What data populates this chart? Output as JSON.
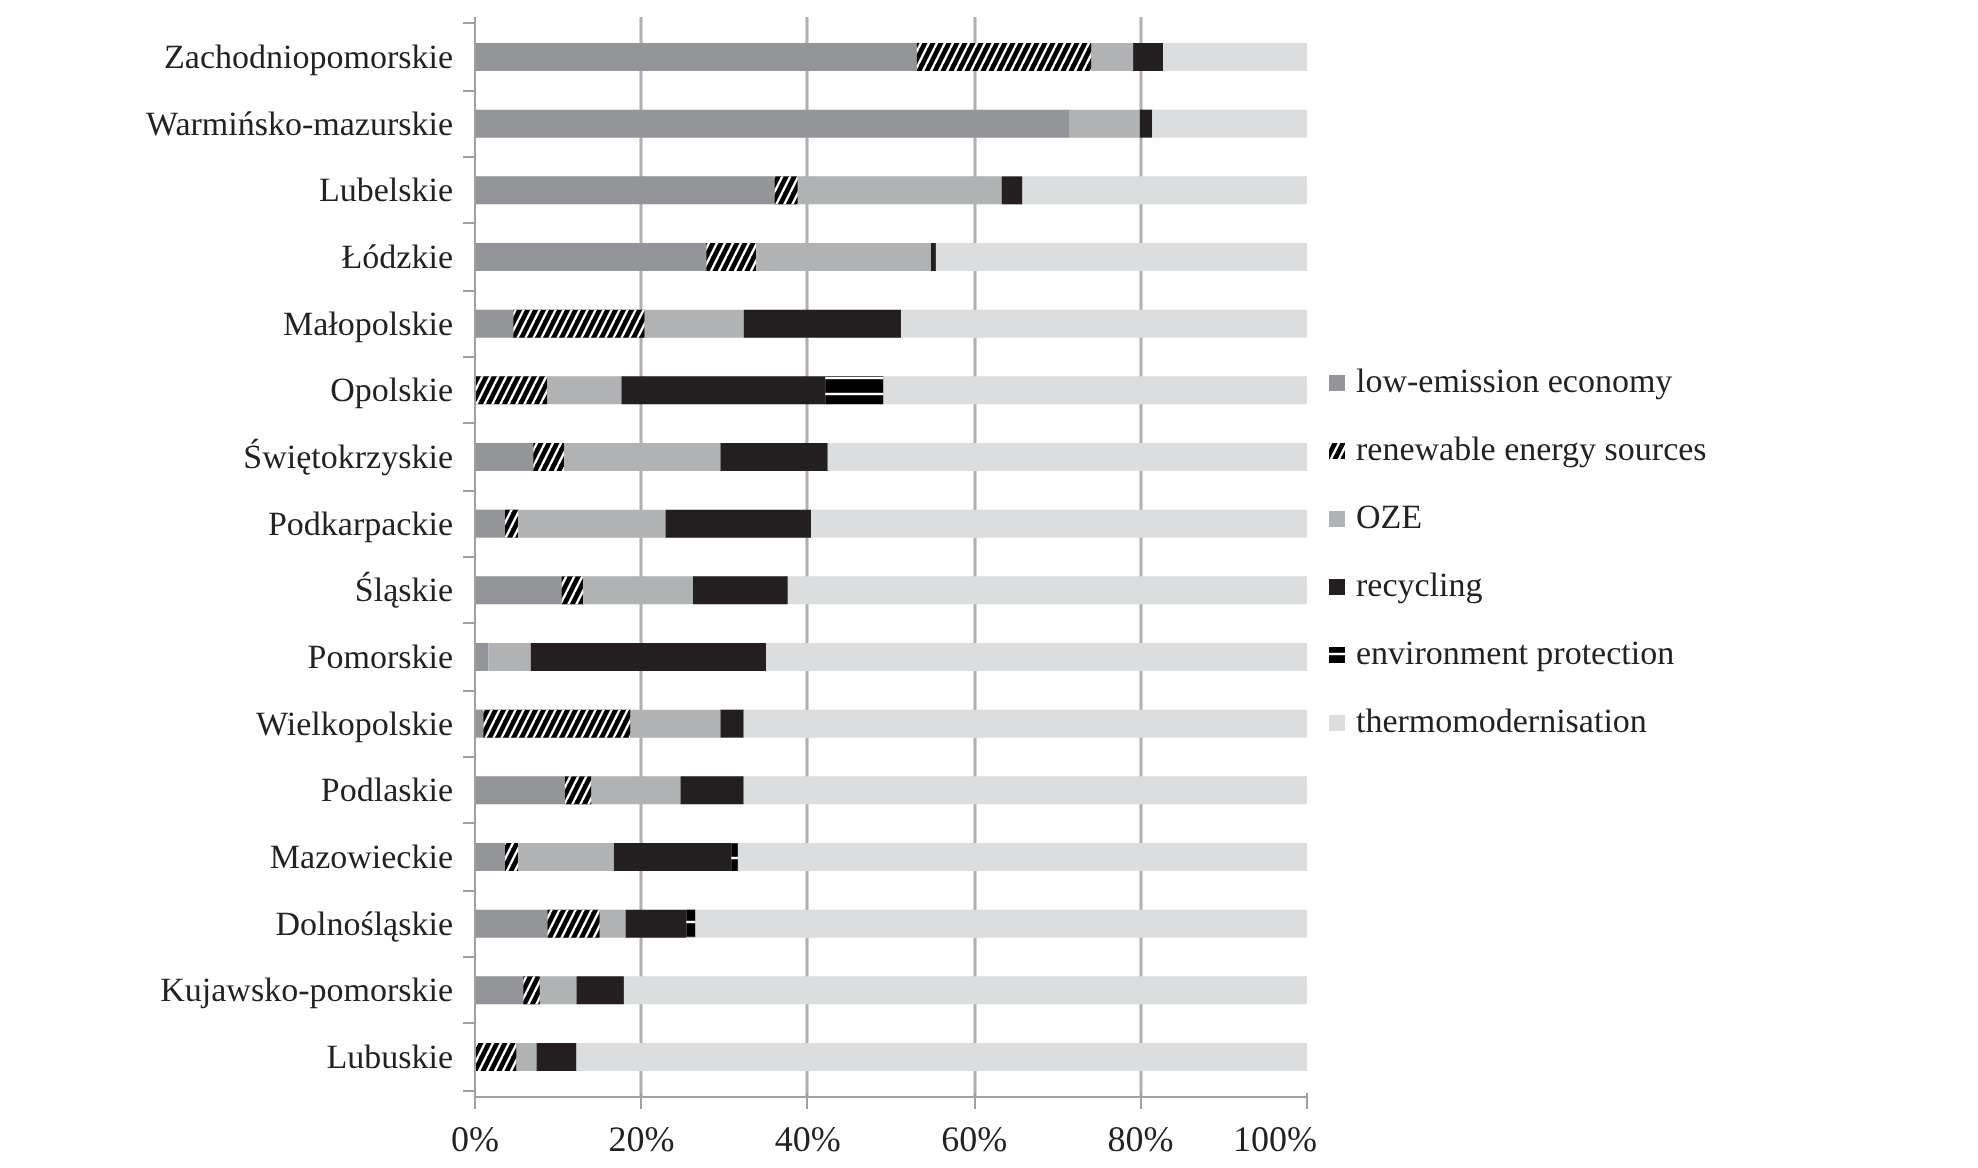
{
  "chart_data": {
    "type": "bar",
    "orientation": "horizontal",
    "stacked": true,
    "categories": [
      "Zachodniopomorskie",
      "Warmińsko-mazurskie",
      "Lubelskie",
      "Łódzkie",
      "Małopolskie",
      "Opolskie",
      "Świętokrzyskie",
      "Podkarpackie",
      "Śląskie",
      "Pomorskie",
      "Wielkopolskie",
      "Podlaskie",
      "Mazowieckie",
      "Dolnośląskie",
      "Kujawsko-pomorskie",
      "Lubuskie"
    ],
    "series": [
      {
        "name": "low-emission economy",
        "color": "#939598",
        "values": [
          53.1,
          71.4,
          36.0,
          27.8,
          4.6,
          0,
          7.0,
          3.6,
          10.4,
          1.6,
          1.0,
          10.8,
          3.6,
          8.7,
          5.8,
          0
        ]
      },
      {
        "name": "renewable energy sources",
        "color": "#000000",
        "values": [
          21.0,
          0,
          2.8,
          6.0,
          15.8,
          8.7,
          3.7,
          1.6,
          2.6,
          0,
          17.7,
          3.2,
          1.6,
          6.3,
          2.0,
          5.0
        ]
      },
      {
        "name": "OZE",
        "color": "#b1b2b4",
        "values": [
          5.0,
          8.5,
          24.5,
          21.0,
          11.9,
          8.9,
          18.8,
          17.7,
          13.2,
          5.1,
          10.8,
          10.7,
          11.5,
          3.1,
          4.4,
          2.4
        ]
      },
      {
        "name": "recycling",
        "color": "#231f20",
        "values": [
          3.6,
          1.5,
          2.5,
          0.6,
          18.9,
          24.5,
          12.9,
          17.5,
          11.4,
          28.3,
          2.8,
          7.6,
          14.1,
          7.3,
          5.7,
          4.8
        ]
      },
      {
        "name": "environment protection",
        "color": "#000000",
        "values": [
          0,
          0,
          0,
          0,
          0,
          7.0,
          0,
          0,
          0,
          0,
          0,
          0,
          0.8,
          1.1,
          0,
          0
        ]
      },
      {
        "name": "thermomodernisation",
        "color": "#dcdddf",
        "values": [
          17.3,
          18.6,
          34.2,
          44.6,
          48.8,
          50.9,
          57.6,
          59.6,
          62.4,
          65.0,
          67.7,
          67.7,
          68.4,
          73.5,
          82.1,
          87.8
        ]
      }
    ],
    "xlim": [
      0,
      100
    ],
    "xticks": [
      {
        "value": 0,
        "label": "0%"
      },
      {
        "value": 20,
        "label": "20%"
      },
      {
        "value": 40,
        "label": "40%"
      },
      {
        "value": 60,
        "label": "60%"
      },
      {
        "value": 80,
        "label": "80%"
      },
      {
        "value": 100,
        "label": "100%"
      }
    ],
    "grid": "x",
    "legend": "right"
  }
}
